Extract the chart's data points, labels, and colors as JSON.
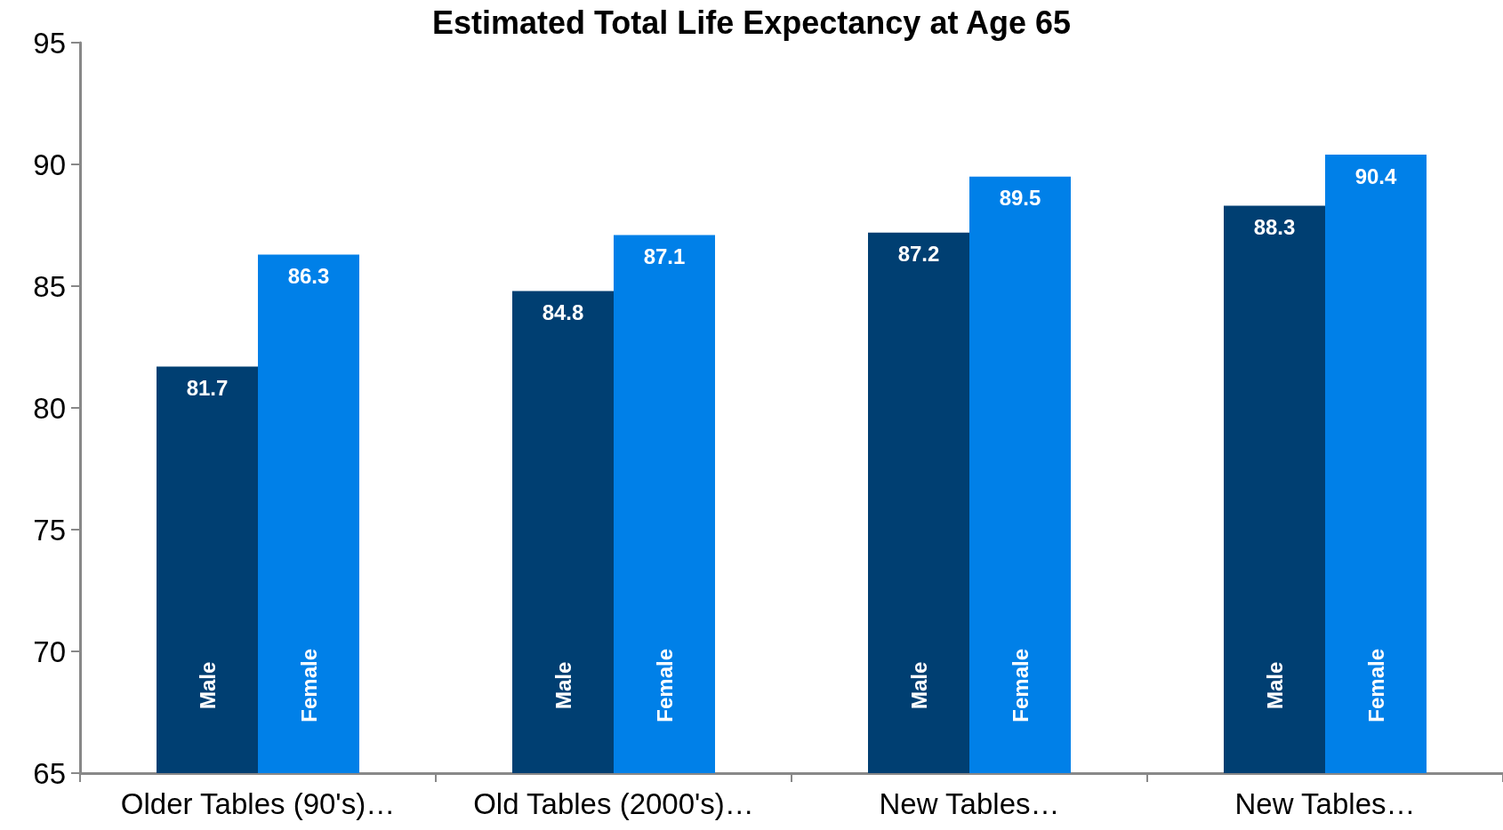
{
  "chart_data": {
    "type": "bar",
    "title": "Estimated Total Life Expectancy at Age 65",
    "categories": [
      "Older Tables (90's)…",
      "Old Tables (2000's)…",
      "New Tables…",
      "New Tables…"
    ],
    "series": [
      {
        "name": "Male",
        "color": "#003f72",
        "values": [
          81.7,
          84.8,
          87.2,
          88.3
        ]
      },
      {
        "name": "Female",
        "color": "#0080e8",
        "values": [
          86.3,
          87.1,
          89.5,
          90.4
        ]
      }
    ],
    "ylim": [
      65,
      95
    ],
    "yticks": [
      65,
      70,
      75,
      80,
      85,
      90,
      95
    ],
    "grid": false,
    "legend": false,
    "data_labels": true
  }
}
